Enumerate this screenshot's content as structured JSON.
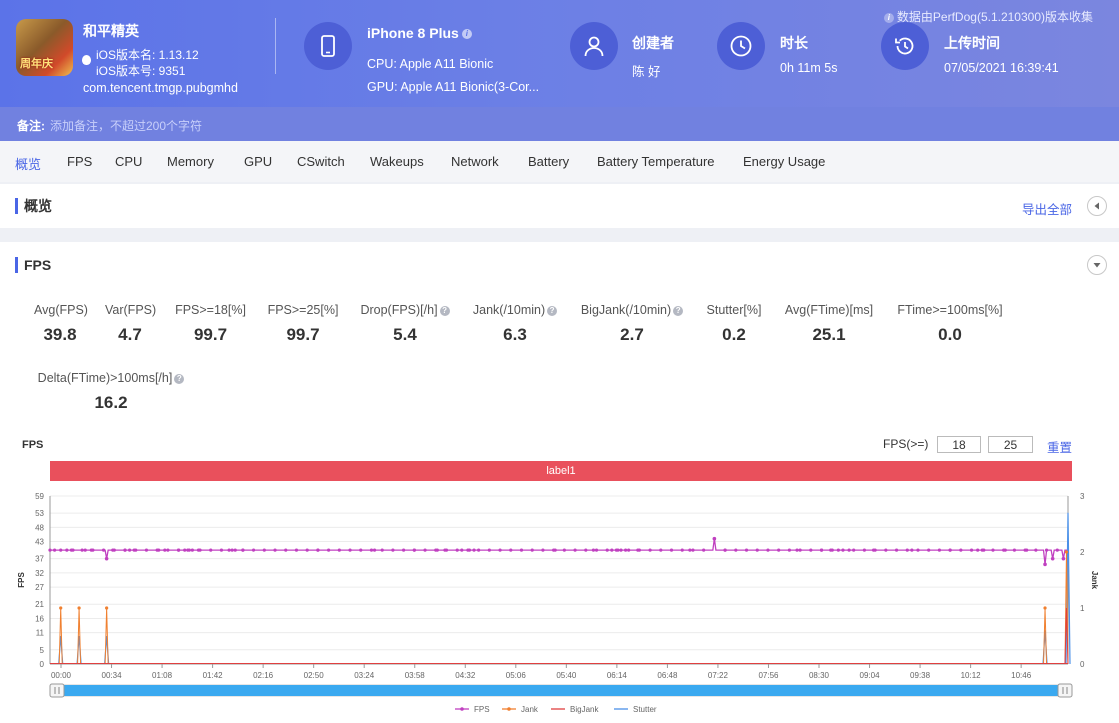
{
  "header": {
    "app_name": "和平精英",
    "app_icon_text": "周年庆",
    "ios_version_name": "iOS版本名: 1.13.12",
    "ios_version_code": "iOS版本号: 9351",
    "package": "com.tencent.tmgp.pubgmhd",
    "device": "iPhone 8 Plus",
    "cpu": "CPU: Apple A11 Bionic",
    "gpu": "GPU: Apple A11 Bionic(3-Cor...",
    "creator_label": "创建者",
    "creator": "陈 好",
    "duration_label": "时长",
    "duration": "0h 11m 5s",
    "upload_label": "上传时间",
    "upload_time": "07/05/2021 16:39:41",
    "source": "数据由PerfDog(5.1.210300)版本收集"
  },
  "remark": {
    "label": "备注:",
    "placeholder": "添加备注，不超过200个字符"
  },
  "tabs": [
    "概览",
    "FPS",
    "CPU",
    "Memory",
    "GPU",
    "CSwitch",
    "Wakeups",
    "Network",
    "Battery",
    "Battery Temperature",
    "Energy Usage"
  ],
  "overview": {
    "title": "概览",
    "export": "导出全部"
  },
  "fps_panel": {
    "title": "FPS",
    "metrics": [
      {
        "label": "Avg(FPS)",
        "value": "39.8"
      },
      {
        "label": "Var(FPS)",
        "value": "4.7"
      },
      {
        "label": "FPS>=18[%]",
        "value": "99.7"
      },
      {
        "label": "FPS>=25[%]",
        "value": "99.7"
      },
      {
        "label": "Drop(FPS)[/h]",
        "value": "5.4"
      },
      {
        "label": "Jank(/10min)",
        "value": "6.3"
      },
      {
        "label": "BigJank(/10min)",
        "value": "2.7"
      },
      {
        "label": "Stutter[%]",
        "value": "0.2"
      },
      {
        "label": "Avg(FTime)[ms]",
        "value": "25.1"
      },
      {
        "label": "FTime>=100ms[%]",
        "value": "0.0"
      },
      {
        "label": "Delta(FTime)>100ms[/h]",
        "value": "16.2"
      }
    ],
    "chart_label": "FPS",
    "fps_threshold_label": "FPS(>=)",
    "threshold_1": "18",
    "threshold_2": "25",
    "reset": "重置",
    "label_bar": "label1"
  },
  "colors": {
    "accent": "#4a66e6",
    "fps": "#c040c0",
    "jank": "#f08030",
    "bigjank": "#e04040",
    "stutter": "#4a90e8",
    "label": "#e9505c"
  },
  "chart_data": {
    "type": "line",
    "x_tick_labels": [
      "00:00",
      "00:34",
      "01:08",
      "01:42",
      "02:16",
      "02:50",
      "03:24",
      "03:58",
      "04:32",
      "05:06",
      "05:40",
      "06:14",
      "06:48",
      "07:22",
      "07:56",
      "08:30",
      "09:04",
      "09:38",
      "10:12",
      "10:46"
    ],
    "xlim_seconds": [
      0,
      665
    ],
    "ylabel": "FPS",
    "ylim": [
      0,
      59
    ],
    "y_ticks": [
      0,
      5,
      11,
      16,
      21,
      27,
      32,
      37,
      43,
      48,
      53,
      59
    ],
    "y2label": "Jank",
    "y2lim": [
      0,
      3
    ],
    "y2_ticks": [
      0,
      1,
      2,
      3
    ],
    "legend": [
      "FPS",
      "Jank",
      "BigJank",
      "Stutter"
    ],
    "legend_position": "bottom",
    "fps_baseline": 40,
    "fps_dips": [
      {
        "t": 37,
        "v": 37
      },
      {
        "t": 434,
        "v": 44
      },
      {
        "t": 650,
        "v": 35
      },
      {
        "t": 655,
        "v": 37
      },
      {
        "t": 662,
        "v": 37
      }
    ],
    "jank_events": [
      {
        "t": 7,
        "v": 1
      },
      {
        "t": 19,
        "v": 1
      },
      {
        "t": 37,
        "v": 1
      },
      {
        "t": 650,
        "v": 1
      },
      {
        "t": 664,
        "v": 2
      }
    ],
    "bigjank_events": [
      {
        "t": 664,
        "v": 1
      }
    ],
    "stutter_events": [
      {
        "t": 7,
        "v": 0.5
      },
      {
        "t": 19,
        "v": 0.5
      },
      {
        "t": 37,
        "v": 0.5
      },
      {
        "t": 650,
        "v": 0.6
      },
      {
        "t": 665,
        "v": 2.7
      }
    ]
  }
}
